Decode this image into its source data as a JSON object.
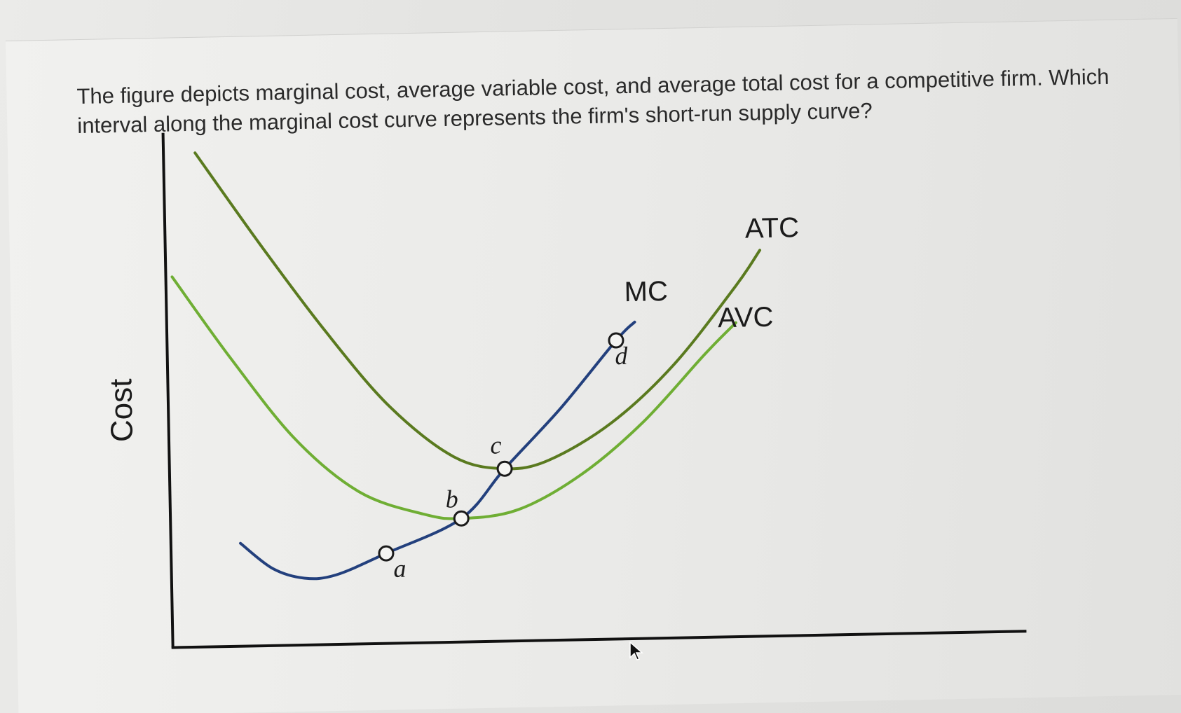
{
  "question": {
    "text": "The figure depicts marginal cost, average variable cost, and average total cost for a competitive firm. Which interval along the marginal cost curve represents the firm's short-run supply curve?"
  },
  "chart_data": {
    "type": "line",
    "ylabel": "Cost",
    "xlabel": "",
    "grid": false,
    "x": [
      0.5,
      1,
      1.5,
      2,
      2.5,
      3,
      3.5,
      4,
      4.5,
      5,
      5.5,
      6,
      6.5,
      7,
      7.5,
      8,
      8.5,
      9,
      9.5
    ],
    "series": [
      {
        "name": "ATC",
        "color": "#5a7a1f",
        "points": [
          [
            0.5,
            9.6
          ],
          [
            1.5,
            7.8
          ],
          [
            2.5,
            6.1
          ],
          [
            3.5,
            4.6
          ],
          [
            4.5,
            3.6
          ],
          [
            5.3,
            3.35
          ],
          [
            6,
            3.5
          ],
          [
            7,
            4.2
          ],
          [
            8,
            5.3
          ],
          [
            9,
            6.8
          ],
          [
            9.4,
            7.5
          ]
        ]
      },
      {
        "name": "AVC",
        "color": "#6fae34",
        "points": [
          [
            0.1,
            7.2
          ],
          [
            1,
            5.6
          ],
          [
            2,
            4.0
          ],
          [
            3,
            2.95
          ],
          [
            4,
            2.5
          ],
          [
            4.6,
            2.4
          ],
          [
            5.5,
            2.55
          ],
          [
            6.5,
            3.2
          ],
          [
            7.5,
            4.2
          ],
          [
            8.5,
            5.5
          ],
          [
            9.0,
            6.1
          ]
        ]
      },
      {
        "name": "MC",
        "color": "#23407d",
        "points": [
          [
            1.1,
            2.0
          ],
          [
            1.6,
            1.5
          ],
          [
            2.1,
            1.3
          ],
          [
            2.6,
            1.35
          ],
          [
            3.4,
            1.75
          ],
          [
            4.6,
            2.4
          ],
          [
            5.3,
            3.35
          ],
          [
            6.2,
            4.5
          ],
          [
            7.1,
            5.8
          ],
          [
            7.4,
            6.15
          ]
        ]
      }
    ],
    "points": [
      {
        "label": "a",
        "x": 3.4,
        "y": 1.75
      },
      {
        "label": "b",
        "x": 4.6,
        "y": 2.4
      },
      {
        "label": "c",
        "x": 5.3,
        "y": 3.35
      },
      {
        "label": "d",
        "x": 7.1,
        "y": 5.8
      }
    ],
    "xlim": [
      0,
      13.5
    ],
    "ylim": [
      0,
      10
    ]
  }
}
